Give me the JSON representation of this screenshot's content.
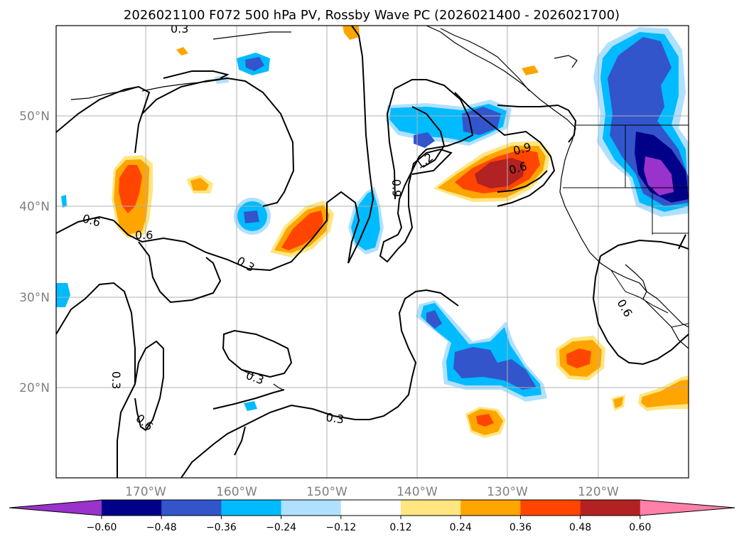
{
  "title": "2026021100 F072 500 hPa PV, Rossby Wave PC (2026021400 - 2026021700)",
  "lat_labels": [
    "50°N",
    "40°N",
    "30°N",
    "20°N"
  ],
  "lon_labels": [
    "170°W",
    "160°W",
    "150°W",
    "140°W",
    "130°W",
    "120°W"
  ],
  "contour_labels": [
    "0.3",
    "0.6",
    "0.6",
    "0.3",
    "0.9",
    "1.2",
    "0.9",
    "0.6",
    "0.6",
    "0.3",
    "0.3",
    "0.3",
    "0.6"
  ],
  "colorbar": {
    "tick_labels": [
      "−0.60",
      "−0.48",
      "−0.36",
      "−0.24",
      "−0.12",
      "0.12",
      "0.24",
      "0.36",
      "0.48",
      "0.60"
    ],
    "colors": [
      "#9933cc",
      "#000088",
      "#3355cc",
      "#00bbff",
      "#b0e0ff",
      "#ffffff",
      "#ffe680",
      "#ffa500",
      "#ff4500",
      "#b22222",
      "#ff80a8"
    ]
  },
  "fill_colors": {
    "neg_light": "#b0e0ff",
    "neg_mid": "#00bbff",
    "neg_strong": "#3355cc",
    "neg_vstrong": "#000088",
    "neg_max": "#9933cc",
    "pos_light": "#ffe680",
    "pos_mid": "#ffa500",
    "pos_strong": "#ff4500",
    "pos_vstrong": "#b22222"
  }
}
